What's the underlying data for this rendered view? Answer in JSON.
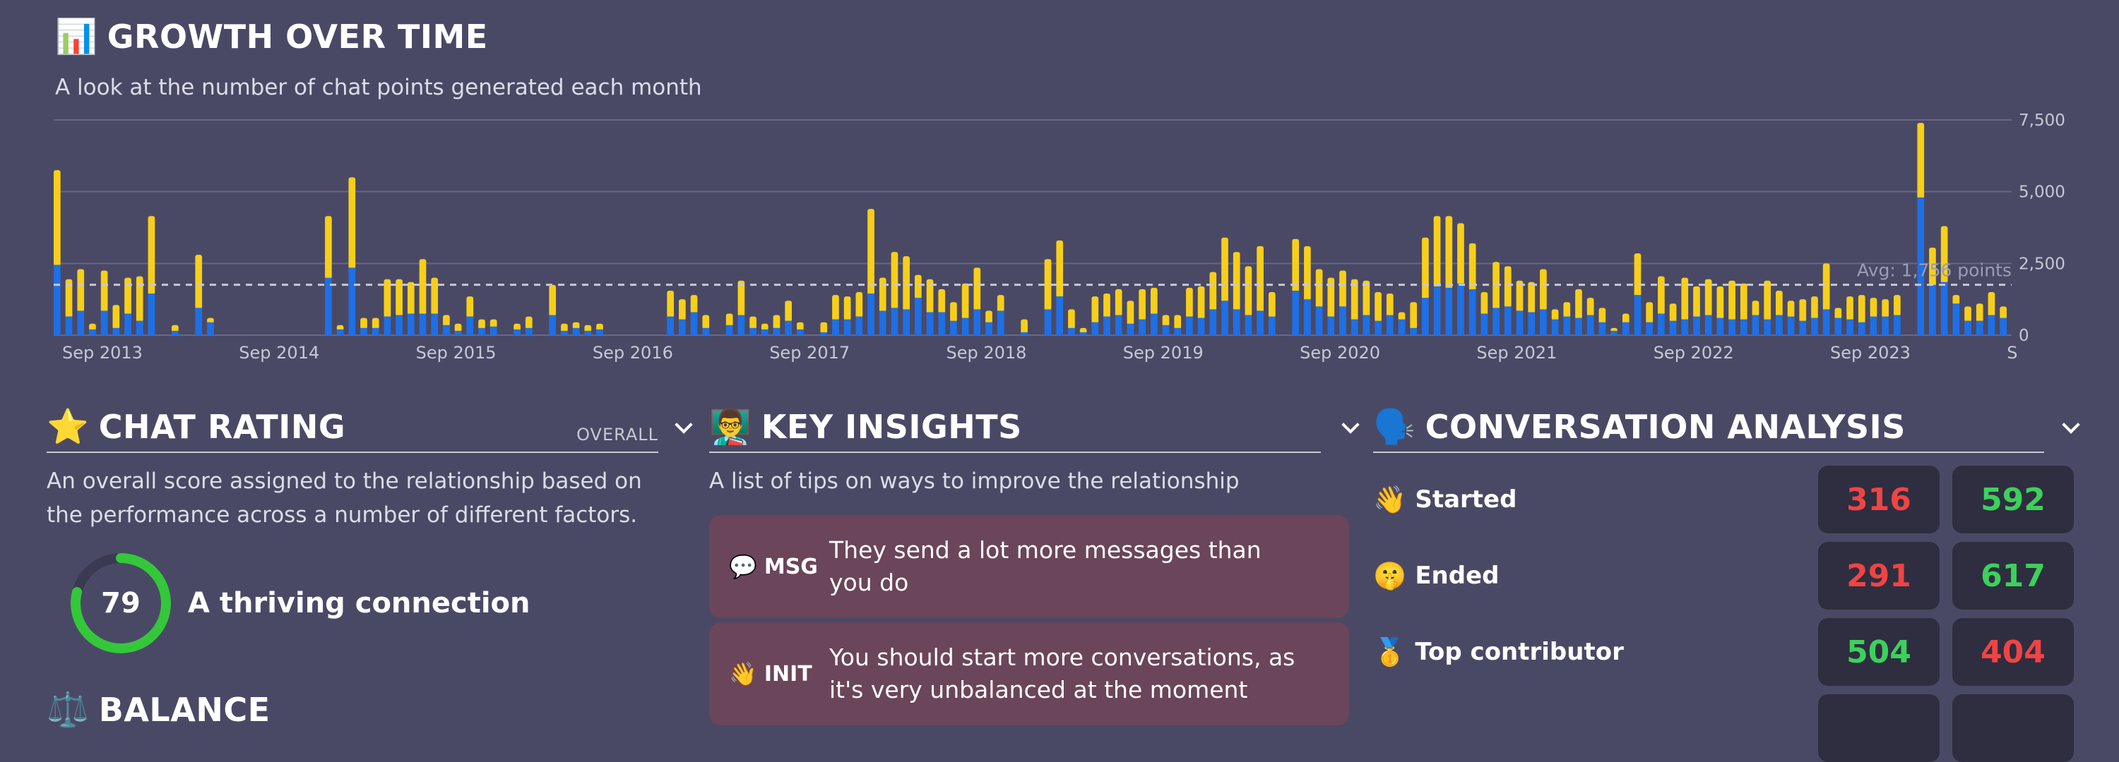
{
  "colors": {
    "background": "#4a4965",
    "bar_blue": "#1f6fe5",
    "bar_yellow": "#f7cf19",
    "score_ring": "#34c73a",
    "value_red": "#ef4444",
    "value_green": "#3cd15b",
    "card_bg": "#6b4559"
  },
  "growth": {
    "icon": "bar-chart-icon",
    "emoji": "📊",
    "title": "GROWTH OVER TIME",
    "subtitle": "A look at the number of chat points generated each month"
  },
  "chart_data": {
    "type": "bar",
    "stacked": true,
    "x_tick_labels": [
      "Sep 2013",
      "Sep 2014",
      "Sep 2015",
      "Sep 2016",
      "Sep 2017",
      "Sep 2018",
      "Sep 2019",
      "Sep 2020",
      "Sep 2021",
      "Sep 2022",
      "Sep 2023",
      "S"
    ],
    "y_tick_labels": [
      "0",
      "2,500",
      "5,000",
      "7,500"
    ],
    "ylim": [
      0,
      7500
    ],
    "grid": true,
    "average": {
      "value": 1756,
      "label": "Avg: 1,756 points"
    },
    "series": [
      {
        "values": [
          2450,
          650,
          850,
          200,
          850,
          250,
          750,
          500,
          1450,
          0,
          150,
          0,
          950,
          450,
          0,
          0,
          0,
          0,
          0,
          0,
          0,
          0,
          0,
          2000,
          200,
          2350,
          250,
          250,
          650,
          700,
          750,
          750,
          750,
          350,
          150,
          650,
          250,
          300,
          0,
          200,
          250,
          0,
          700,
          150,
          250,
          150,
          200,
          0,
          0,
          0,
          0,
          0,
          650,
          550,
          800,
          250,
          0,
          350,
          700,
          250,
          200,
          250,
          500,
          200,
          0,
          100,
          550,
          550,
          650,
          1450,
          850,
          950,
          900,
          1300,
          800,
          800,
          500,
          600,
          900,
          450,
          850,
          0,
          100,
          0,
          900,
          1350,
          250,
          100,
          450,
          650,
          700,
          400,
          550,
          750,
          350,
          250,
          650,
          600,
          900,
          1200,
          900,
          700,
          850,
          650,
          0,
          1550,
          1250,
          1000,
          650,
          1000,
          550,
          700,
          500,
          700,
          550,
          250,
          1300,
          1700,
          1650,
          1800,
          1600,
          750,
          950,
          1000,
          850,
          800,
          900,
          550,
          650,
          600,
          700,
          450,
          150,
          450,
          1400,
          450,
          750,
          500,
          550,
          650,
          700,
          600,
          550,
          550,
          700,
          550,
          700,
          650,
          500,
          600,
          900,
          600,
          550,
          450,
          650,
          650,
          700,
          0,
          4800,
          1750,
          1850,
          1100,
          500,
          500,
          700,
          600
        ]
      },
      {
        "values": [
          3300,
          1300,
          1450,
          200,
          1400,
          800,
          1250,
          1550,
          2700,
          0,
          200,
          0,
          1850,
          150,
          0,
          0,
          0,
          0,
          0,
          0,
          0,
          0,
          0,
          2150,
          150,
          3150,
          350,
          350,
          1300,
          1250,
          1100,
          1900,
          1250,
          350,
          250,
          700,
          300,
          250,
          0,
          200,
          400,
          0,
          1050,
          250,
          200,
          200,
          200,
          0,
          0,
          0,
          0,
          0,
          900,
          700,
          600,
          450,
          0,
          400,
          1200,
          400,
          200,
          450,
          700,
          250,
          0,
          350,
          850,
          800,
          850,
          2950,
          1150,
          1950,
          1850,
          800,
          1150,
          800,
          650,
          1200,
          1450,
          400,
          550,
          0,
          450,
          0,
          1750,
          1950,
          650,
          150,
          900,
          800,
          900,
          800,
          1050,
          900,
          350,
          450,
          1000,
          1100,
          1300,
          2200,
          2000,
          1700,
          2250,
          850,
          0,
          1800,
          1850,
          1300,
          1350,
          1250,
          1400,
          1200,
          1000,
          750,
          250,
          900,
          2100,
          2450,
          2500,
          2100,
          1600,
          750,
          1600,
          1400,
          1050,
          1050,
          1400,
          350,
          500,
          1000,
          600,
          500,
          100,
          300,
          1450,
          700,
          1300,
          600,
          1450,
          1050,
          1250,
          1100,
          1350,
          1250,
          500,
          1350,
          850,
          550,
          750,
          750,
          1600,
          350,
          800,
          950,
          650,
          600,
          700,
          0,
          2600,
          1300,
          1950,
          300,
          500,
          600,
          800,
          400
        ]
      }
    ]
  },
  "rating": {
    "icon": "star-icon",
    "emoji": "⭐",
    "title": "CHAT RATING",
    "filter": "OVERALL",
    "description": "An overall score assigned to the relationship based on the performance across a number of different factors.",
    "score": "79",
    "score_fraction": 0.79,
    "score_label": "A thriving connection"
  },
  "balance": {
    "icon": "balance-scale-icon",
    "emoji": "⚖️",
    "title": "BALANCE"
  },
  "insights": {
    "icon": "teacher-icon",
    "emoji": "👨‍🏫",
    "title": "KEY INSIGHTS",
    "description": "A list of tips on ways to improve the relationship",
    "items": [
      {
        "icon": "speech-bubble-icon",
        "emoji": "💬",
        "tag": "MSG",
        "text": "They send a lot more messages than you do"
      },
      {
        "icon": "waving-hand-icon",
        "emoji": "👋",
        "tag": "INIT",
        "text": "You should start more conversations, as it's very unbalanced at the moment"
      }
    ]
  },
  "analysis": {
    "icon": "speaking-head-icon",
    "emoji": "🗣️",
    "title": "CONVERSATION ANALYSIS",
    "rows": [
      {
        "icon": "waving-hand-icon",
        "emoji": "👋",
        "label": "Started",
        "left": "316",
        "left_color": "red",
        "right": "592",
        "right_color": "green"
      },
      {
        "icon": "shushing-face-icon",
        "emoji": "🤫",
        "label": "Ended",
        "left": "291",
        "left_color": "red",
        "right": "617",
        "right_color": "green"
      },
      {
        "icon": "medal-icon",
        "emoji": "🥇",
        "label": "Top contributor",
        "left": "504",
        "left_color": "green",
        "right": "404",
        "right_color": "red"
      }
    ]
  }
}
